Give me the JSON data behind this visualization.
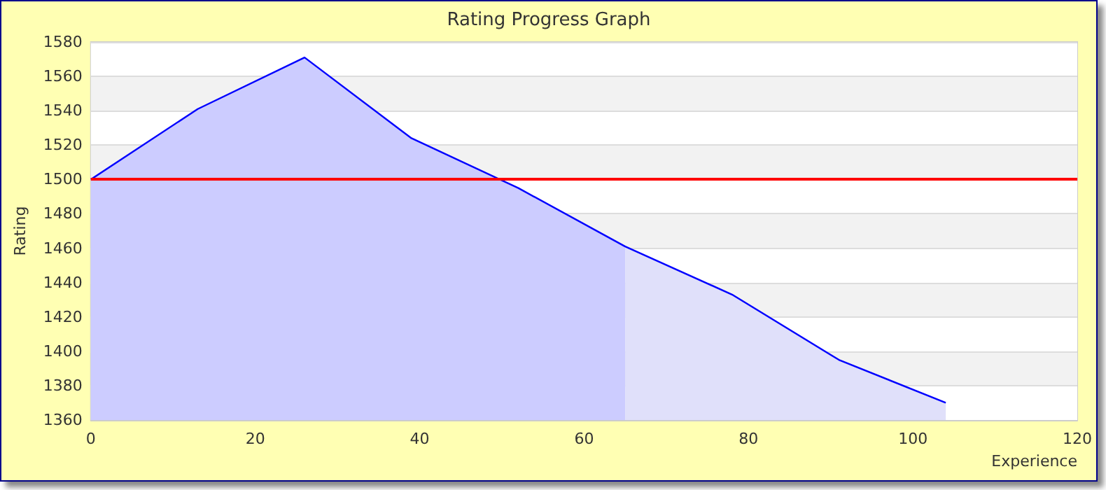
{
  "chart_data": {
    "type": "line",
    "title": "Rating Progress Graph",
    "xlabel": "Experience",
    "ylabel": "Rating",
    "series": [
      {
        "type": "area",
        "color": "#ccccff",
        "x": [
          0,
          13,
          26,
          39,
          52,
          65
        ],
        "values": [
          1500,
          1541,
          1571,
          1524,
          1495,
          1461
        ]
      },
      {
        "type": "area",
        "color": "#e0e0fa",
        "x": [
          65,
          78,
          91,
          104
        ],
        "values": [
          1461,
          1433,
          1395,
          1370
        ]
      },
      {
        "type": "line",
        "color": "#0000ff",
        "x": [
          0,
          13,
          26,
          39,
          52,
          65,
          78,
          91,
          104
        ],
        "values": [
          1500,
          1541,
          1571,
          1524,
          1495,
          1461,
          1433,
          1395,
          1370
        ]
      }
    ],
    "xlim": [
      0,
      120
    ],
    "xticks": [
      0,
      20,
      40,
      60,
      80,
      100,
      120
    ],
    "ylim": [
      1360,
      1580
    ],
    "yticks": [
      1360,
      1380,
      1400,
      1420,
      1440,
      1460,
      1480,
      1500,
      1520,
      1540,
      1560,
      1580
    ],
    "ref_lines": [
      {
        "axis": "y",
        "value": 1500,
        "color": "#ff0000"
      }
    ],
    "grid": "y",
    "marker": "none"
  }
}
